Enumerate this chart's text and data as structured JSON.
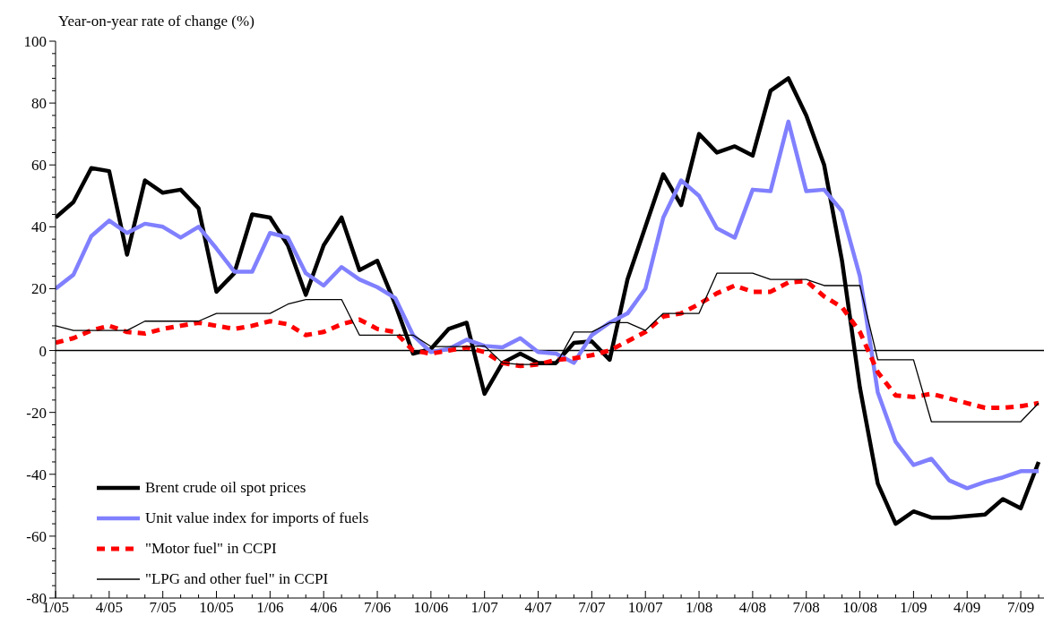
{
  "chart_data": {
    "type": "line",
    "ylabel": "Year-on-year rate of change (%)",
    "categories": [
      "1/05",
      null,
      null,
      "4/05",
      null,
      null,
      "7/05",
      null,
      null,
      "10/05",
      null,
      null,
      "1/06",
      null,
      null,
      "4/06",
      null,
      null,
      "7/06",
      null,
      null,
      "10/06",
      null,
      null,
      "1/07",
      null,
      null,
      "4/07",
      null,
      null,
      "7/07",
      null,
      null,
      "10/07",
      null,
      null,
      "1/08",
      null,
      null,
      "4/08",
      null,
      null,
      "7/08",
      null,
      null,
      "10/08",
      null,
      null,
      "1/09",
      null,
      null,
      "4/09",
      null,
      null,
      "7/09",
      null
    ],
    "series": [
      {
        "name": "Brent crude oil spot prices",
        "color": "#000000",
        "line_style": "solid",
        "values": [
          43,
          48,
          59,
          58,
          31,
          55,
          51,
          52,
          46,
          19,
          25,
          44,
          43,
          34,
          18,
          34,
          43,
          26,
          29,
          15,
          -1,
          0.5,
          7,
          9,
          -14,
          -4,
          -1,
          -4,
          -4,
          2.5,
          3,
          -3,
          23,
          40,
          57,
          47,
          70,
          64,
          66,
          63,
          84,
          88,
          76,
          60,
          29,
          -12,
          -43,
          -56,
          -52,
          -54,
          -54,
          -53.5,
          -53,
          -48,
          -51,
          -36
        ]
      },
      {
        "name": "Unit value index for imports of fuels",
        "color": "#8080ff",
        "line_style": "solid",
        "values": [
          20,
          24.5,
          37,
          42,
          38,
          41,
          40,
          36.5,
          40,
          33,
          25.5,
          25.5,
          38,
          36.5,
          25,
          21,
          27,
          23,
          20.5,
          17,
          5,
          -0.5,
          0.5,
          3.5,
          1.5,
          1,
          4,
          -0.5,
          -1,
          -4,
          5,
          9,
          12,
          20,
          43,
          55,
          50,
          39.5,
          36.5,
          52,
          51.5,
          74,
          51.5,
          52,
          45,
          24,
          -13.5,
          -29.5,
          -37,
          -35,
          -42,
          -44.5,
          -42.5,
          -41,
          -39,
          -39
        ]
      },
      {
        "name": "\"Motor fuel\" in CCPI",
        "color": "#ff0000",
        "line_style": "dashed",
        "values": [
          2.5,
          4,
          6.5,
          8,
          6,
          5.5,
          7,
          8,
          9,
          8,
          7,
          8,
          9.5,
          8.5,
          5,
          6,
          8.5,
          10,
          7,
          6,
          0,
          -1,
          0,
          1,
          -0.5,
          -4,
          -5,
          -4.5,
          -3,
          -2.5,
          -1.5,
          0,
          3,
          6,
          11,
          12,
          15,
          18.5,
          21,
          19,
          19,
          22,
          22.5,
          17.5,
          14,
          6,
          -7,
          -14.5,
          -15,
          -14,
          -15.5,
          -17,
          -18.5,
          -18.5,
          -18,
          -17
        ]
      },
      {
        "name": "\"LPG and other fuel\" in CCPI",
        "color": "#000000",
        "line_style": "solid",
        "values": [
          8,
          6.5,
          6.5,
          6.5,
          6.5,
          9.5,
          9.5,
          9.5,
          9.5,
          12,
          12,
          12,
          12,
          15,
          16.5,
          16.5,
          16.5,
          5,
          5,
          5,
          5,
          1.3,
          1.3,
          1.3,
          1.5,
          -4,
          -4.5,
          -4.5,
          -4.5,
          6,
          6,
          9,
          9,
          6.5,
          12,
          12,
          12,
          25,
          25,
          25,
          23,
          23,
          23,
          21,
          21,
          21,
          -3,
          -3,
          -3,
          -23,
          -23,
          -23,
          -23,
          -23,
          -23,
          -17
        ]
      }
    ],
    "ylim": [
      -80,
      100
    ],
    "yticks": [
      -80,
      {
        "value": -76,
        "label": null
      },
      {
        "value": -72,
        "label": null
      },
      {
        "value": -68,
        "label": null
      },
      {
        "value": -64,
        "label": null
      },
      -60,
      {
        "value": -56,
        "label": null
      },
      {
        "value": -52,
        "label": null
      },
      {
        "value": -48,
        "label": null
      },
      {
        "value": -44,
        "label": null
      },
      -40,
      {
        "value": -36,
        "label": null
      },
      {
        "value": -32,
        "label": null
      },
      {
        "value": -28,
        "label": null
      },
      {
        "value": -24,
        "label": null
      },
      -20,
      {
        "value": -16,
        "label": null
      },
      {
        "value": -12,
        "label": null
      },
      {
        "value": -8,
        "label": null
      },
      {
        "value": -4,
        "label": null
      },
      0,
      {
        "value": 4,
        "label": null
      },
      {
        "value": 8,
        "label": null
      },
      {
        "value": 12,
        "label": null
      },
      {
        "value": 16,
        "label": null
      },
      20,
      {
        "value": 24,
        "label": null
      },
      {
        "value": 28,
        "label": null
      },
      {
        "value": 32,
        "label": null
      },
      {
        "value": 36,
        "label": null
      },
      40,
      {
        "value": 44,
        "label": null
      },
      {
        "value": 48,
        "label": null
      },
      {
        "value": 52,
        "label": null
      },
      {
        "value": 56,
        "label": null
      },
      60,
      {
        "value": 64,
        "label": null
      },
      {
        "value": 68,
        "label": null
      },
      {
        "value": 72,
        "label": null
      },
      {
        "value": 76,
        "label": null
      },
      80,
      {
        "value": 84,
        "label": null
      },
      {
        "value": 88,
        "label": null
      },
      {
        "value": 92,
        "label": null
      },
      {
        "value": 96,
        "label": null
      },
      100
    ],
    "ref_lines": [
      {
        "axis": "y",
        "value": 0,
        "color": "#000000"
      }
    ],
    "grid": false,
    "legend": "bottom left",
    "marker": "none"
  }
}
